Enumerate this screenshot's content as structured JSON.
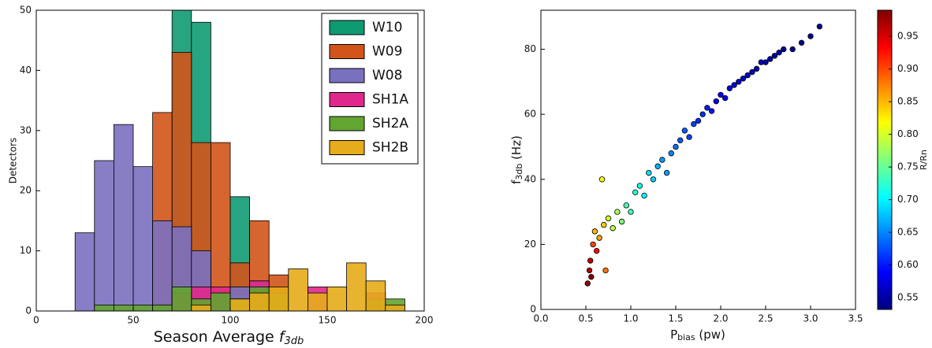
{
  "chart_data": [
    {
      "type": "histogram",
      "x_label": [
        "Season Average ",
        "f",
        "3db"
      ],
      "y_label": "Detectors",
      "bins": [
        20,
        30,
        40,
        50,
        60,
        70,
        80,
        90,
        100,
        110,
        120,
        130,
        140,
        150,
        160,
        170,
        180,
        190
      ],
      "series": [
        {
          "name": "W10",
          "color": "#0f9b72",
          "values": [
            0,
            0,
            0,
            0,
            0,
            50,
            48,
            0,
            19,
            0,
            0,
            0,
            0,
            0,
            0,
            0,
            0
          ]
        },
        {
          "name": "W09",
          "color": "#d2541a",
          "values": [
            0,
            0,
            0,
            0,
            33,
            43,
            28,
            28,
            8,
            15,
            6,
            0,
            0,
            0,
            0,
            0,
            0
          ]
        },
        {
          "name": "W08",
          "color": "#7a70c0",
          "values": [
            13,
            25,
            31,
            24,
            15,
            14,
            10,
            3,
            4,
            5,
            0,
            0,
            0,
            0,
            0,
            0,
            0
          ]
        },
        {
          "name": "SH1A",
          "color": "#e0288c",
          "values": [
            0,
            0,
            0,
            0,
            0,
            3,
            4,
            4,
            0,
            5,
            0,
            0,
            4,
            0,
            0,
            3,
            0
          ]
        },
        {
          "name": "SH2A",
          "color": "#63a531",
          "values": [
            0,
            1,
            1,
            1,
            1,
            4,
            2,
            3,
            2,
            4,
            3,
            0,
            0,
            0,
            0,
            2,
            2
          ]
        },
        {
          "name": "SH2B",
          "color": "#e6ac1a",
          "values": [
            0,
            0,
            0,
            0,
            0,
            0,
            1,
            0,
            2,
            3,
            4,
            7,
            3,
            4,
            8,
            5,
            1
          ]
        }
      ],
      "xlim": [
        0,
        200
      ],
      "xticks": [
        0,
        50,
        100,
        150,
        200
      ],
      "ylim": [
        0,
        50
      ],
      "yticks": [
        0,
        10,
        20,
        30,
        40,
        50
      ],
      "legend": "upper right"
    },
    {
      "type": "scatter",
      "x_label": [
        "P",
        "bias",
        " (pw)"
      ],
      "y_label": [
        "f",
        "3db",
        " (Hz)"
      ],
      "colorbar_label": "R/Rn",
      "x": [
        0.52,
        0.54,
        0.55,
        0.56,
        0.58,
        0.6,
        0.62,
        0.65,
        0.68,
        0.7,
        0.72,
        0.75,
        0.8,
        0.85,
        0.9,
        0.95,
        1.0,
        1.05,
        1.1,
        1.15,
        1.2,
        1.25,
        1.3,
        1.35,
        1.4,
        1.45,
        1.5,
        1.55,
        1.6,
        1.65,
        1.7,
        1.75,
        1.8,
        1.85,
        1.9,
        1.95,
        2.0,
        2.05,
        2.1,
        2.15,
        2.2,
        2.25,
        2.3,
        2.35,
        2.4,
        2.45,
        2.5,
        2.55,
        2.6,
        2.65,
        2.7,
        2.8,
        2.9,
        3.0,
        3.1
      ],
      "values": [
        8,
        12,
        15,
        10,
        20,
        24,
        18,
        22,
        40,
        26,
        12,
        28,
        25,
        30,
        27,
        32,
        30,
        36,
        38,
        35,
        42,
        40,
        44,
        46,
        42,
        48,
        50,
        52,
        55,
        53,
        57,
        58,
        60,
        62,
        61,
        64,
        66,
        65,
        68,
        69,
        70,
        71,
        72,
        73,
        74,
        76,
        76,
        77,
        78,
        79,
        80,
        80,
        82,
        84,
        87
      ],
      "color_values": [
        0.98,
        0.97,
        0.96,
        0.99,
        0.9,
        0.85,
        0.93,
        0.86,
        0.82,
        0.84,
        0.88,
        0.8,
        0.79,
        0.78,
        0.76,
        0.74,
        0.73,
        0.72,
        0.71,
        0.7,
        0.69,
        0.68,
        0.67,
        0.66,
        0.66,
        0.65,
        0.64,
        0.63,
        0.63,
        0.62,
        0.62,
        0.61,
        0.61,
        0.6,
        0.6,
        0.59,
        0.59,
        0.58,
        0.58,
        0.58,
        0.57,
        0.57,
        0.57,
        0.56,
        0.56,
        0.56,
        0.55,
        0.55,
        0.55,
        0.55,
        0.54,
        0.54,
        0.54,
        0.54,
        0.54
      ],
      "xlim": [
        0,
        3.5
      ],
      "xticks": [
        {
          "value": 0,
          "label": "0.0"
        },
        {
          "value": 0.5,
          "label": "0.5"
        },
        {
          "value": 1,
          "label": "1.0"
        },
        {
          "value": 1.5,
          "label": "1.5"
        },
        {
          "value": 2,
          "label": "2.0"
        },
        {
          "value": 2.5,
          "label": "2.5"
        },
        {
          "value": 3,
          "label": "3.0"
        },
        {
          "value": 3.5,
          "label": "3.5"
        }
      ],
      "ylim": [
        0,
        92
      ],
      "yticks": [
        0,
        20,
        40,
        60,
        80
      ],
      "clim": [
        0.532,
        0.99
      ],
      "cticks": [
        0.55,
        {
          "value": 0.6,
          "label": "0.60"
        },
        0.65,
        {
          "value": 0.7,
          "label": "0.70"
        },
        0.75,
        {
          "value": 0.8,
          "label": "0.80"
        },
        0.85,
        {
          "value": 0.9,
          "label": "0.90"
        },
        0.95
      ],
      "colormap": "jet"
    }
  ]
}
